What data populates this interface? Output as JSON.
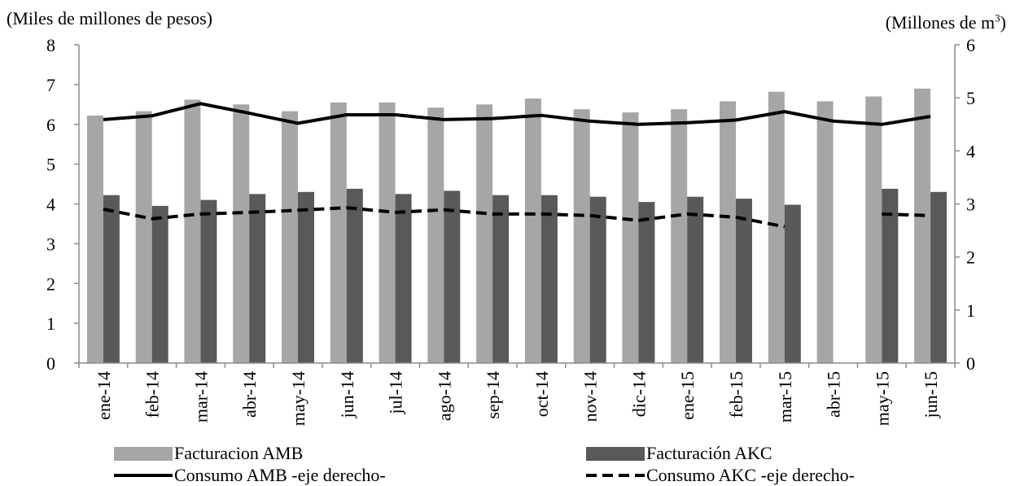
{
  "chart_data": {
    "type": "bar",
    "categories": [
      "ene-14",
      "feb-14",
      "mar-14",
      "abr-14",
      "may-14",
      "jun-14",
      "jul-14",
      "ago-14",
      "sep-14",
      "oct-14",
      "nov-14",
      "dic-14",
      "ene-15",
      "feb-15",
      "mar-15",
      "abr-15",
      "may-15",
      "jun-15"
    ],
    "left_axis": {
      "label": "(Miles de millones de pesos)",
      "ylim": [
        0,
        8
      ],
      "ticks": [
        "0",
        "1",
        "2",
        "3",
        "4",
        "5",
        "6",
        "7",
        "8"
      ]
    },
    "right_axis": {
      "label": "(Millones de m",
      "label_sup": "3",
      "label_end": ")",
      "ylim": [
        0,
        6
      ],
      "ticks": [
        "0",
        "1",
        "2",
        "3",
        "4",
        "5",
        "6"
      ]
    },
    "series": [
      {
        "name": "Facturacion AMB",
        "kind": "bar",
        "axis": "left",
        "color": "#a6a6a6",
        "values": [
          6.22,
          6.33,
          6.62,
          6.5,
          6.33,
          6.55,
          6.55,
          6.42,
          6.5,
          6.65,
          6.38,
          6.3,
          6.38,
          6.58,
          6.82,
          6.58,
          6.7,
          6.9
        ]
      },
      {
        "name": "Facturación AKC",
        "kind": "bar",
        "axis": "left",
        "color": "#595959",
        "values": [
          4.22,
          3.95,
          4.1,
          4.25,
          4.3,
          4.38,
          4.25,
          4.33,
          4.22,
          4.22,
          4.18,
          4.05,
          4.18,
          4.13,
          3.98,
          null,
          4.38,
          4.3
        ]
      },
      {
        "name": "Consumo AMB -eje derecho-",
        "kind": "line",
        "axis": "right",
        "color": "#000000",
        "dash": "solid",
        "values": [
          4.59,
          4.66,
          4.89,
          4.71,
          4.52,
          4.68,
          4.68,
          4.59,
          4.61,
          4.67,
          4.56,
          4.5,
          4.53,
          4.58,
          4.74,
          4.56,
          4.5,
          4.65
        ]
      },
      {
        "name": "Consumo AKC -eje derecho-",
        "kind": "line",
        "axis": "right",
        "color": "#000000",
        "dash": "dashed",
        "values": [
          2.9,
          2.72,
          2.81,
          2.84,
          2.88,
          2.93,
          2.84,
          2.89,
          2.81,
          2.81,
          2.78,
          2.69,
          2.81,
          2.75,
          2.57,
          null,
          2.81,
          2.78
        ]
      }
    ],
    "grid": false,
    "legend": "bottom"
  }
}
